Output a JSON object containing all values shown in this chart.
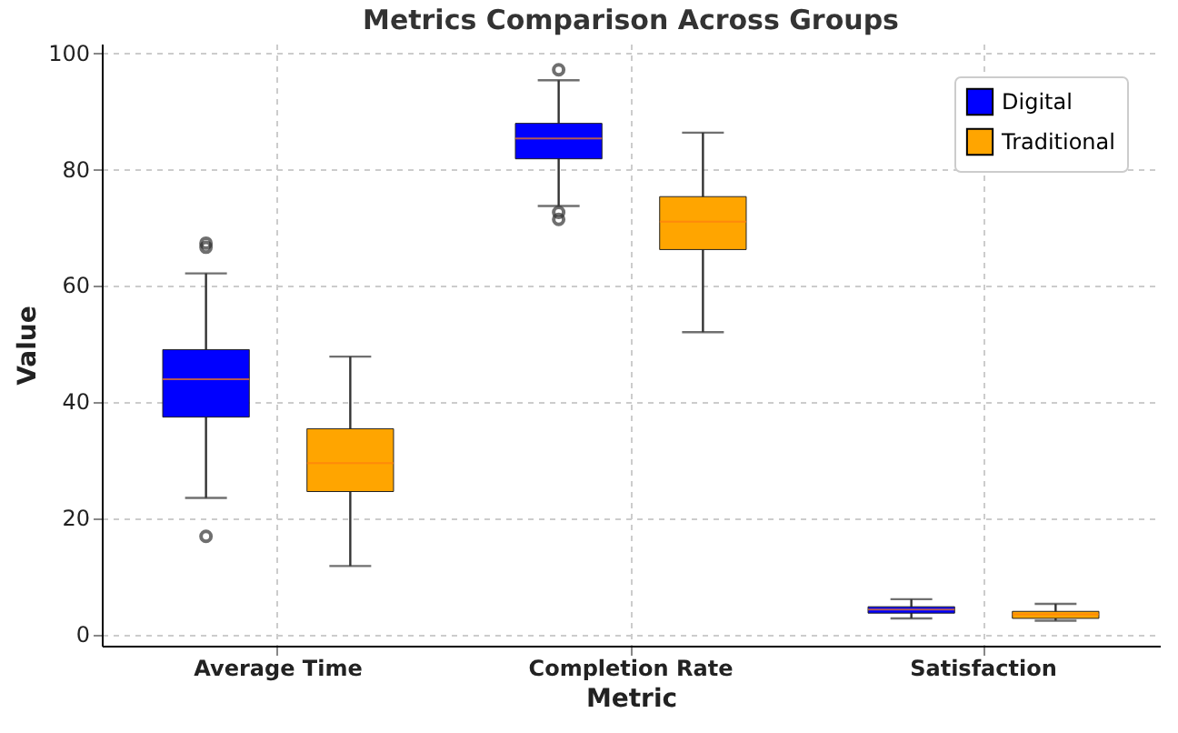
{
  "chart_data": {
    "type": "box",
    "title": "Metrics Comparison Across Groups",
    "xlabel": "Metric",
    "ylabel": "Value",
    "categories": [
      "Average Time",
      "Completion Rate",
      "Satisfaction"
    ],
    "series": [
      {
        "name": "Digital",
        "color": "#0000ff",
        "boxes": [
          {
            "low": 23.4,
            "q1": 37.3,
            "median": 43.8,
            "q3": 48.9,
            "high": 62,
            "outliers": [
              16.8,
              66.5,
              67.2
            ]
          },
          {
            "low": 73.6,
            "q1": 81.7,
            "median": 85.2,
            "q3": 87.8,
            "high": 95.2,
            "outliers": [
              97,
              72.5,
              71.3
            ]
          },
          {
            "low": 2.7,
            "q1": 3.6,
            "median": 4.2,
            "q3": 4.7,
            "high": 6
          }
        ]
      },
      {
        "name": "Traditional",
        "color": "#ffa500",
        "boxes": [
          {
            "low": 11.7,
            "q1": 24.5,
            "median": 29.4,
            "q3": 35.3,
            "high": 47.7
          },
          {
            "low": 51.9,
            "q1": 66.1,
            "median": 70.9,
            "q3": 75.2,
            "high": 86.2
          },
          {
            "low": 2.3,
            "q1": 2.7,
            "median": 3.4,
            "q3": 3.9,
            "high": 5.2
          }
        ]
      }
    ],
    "ylim": [
      -2,
      101.5
    ],
    "yticks": [
      0,
      20,
      40,
      60,
      80,
      100
    ],
    "grid": true,
    "legend": "top right"
  }
}
